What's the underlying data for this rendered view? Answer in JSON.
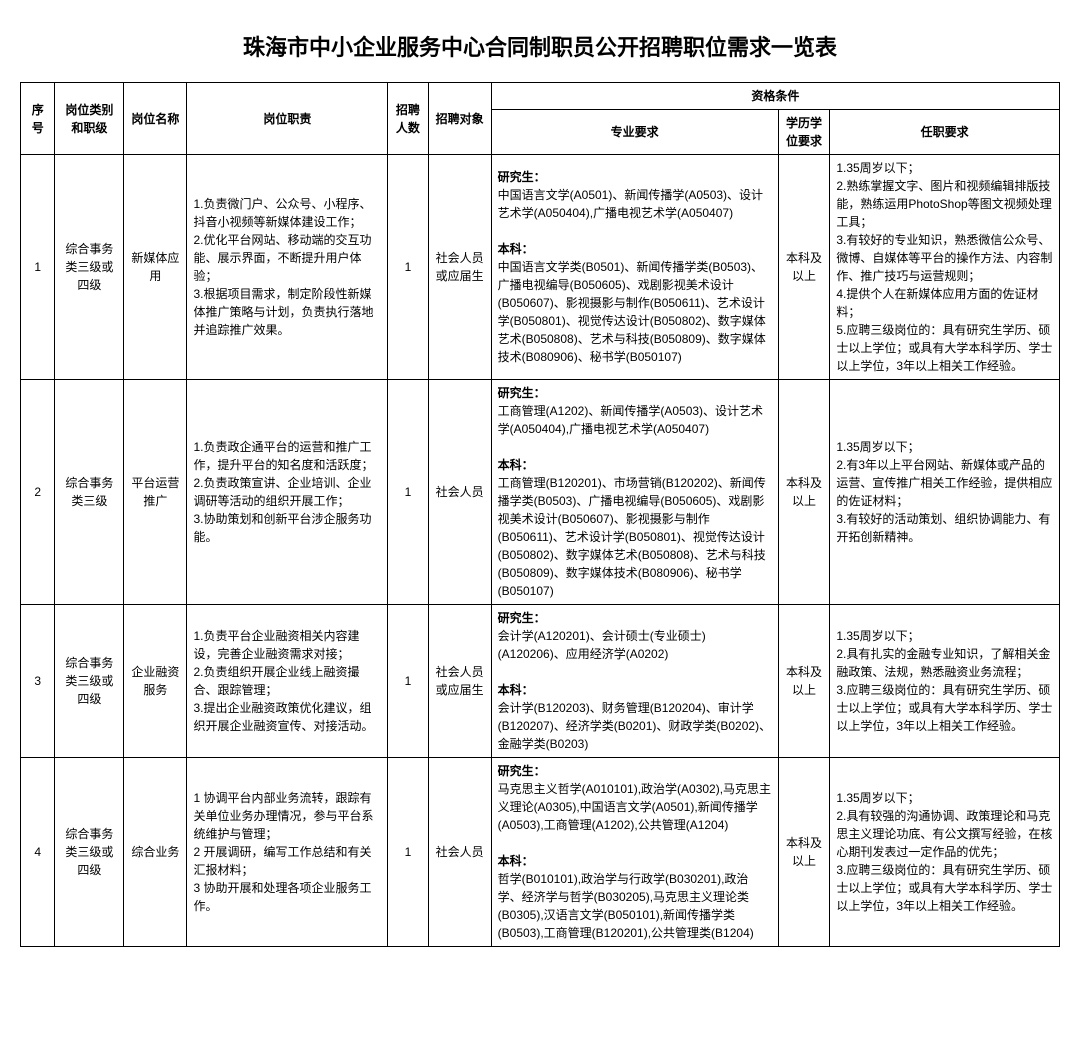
{
  "title": "珠海市中小企业服务中心合同制职员公开招聘职位需求一览表",
  "headers": {
    "idx": "序号",
    "category": "岗位类别和职级",
    "name": "岗位名称",
    "duty": "岗位职责",
    "num": "招聘人数",
    "obj": "招聘对象",
    "qual": "资格条件",
    "major": "专业要求",
    "edu": "学历学位要求",
    "req": "任职要求"
  },
  "labels": {
    "grad": "研究生：",
    "undergrad": "本科："
  },
  "rows": [
    {
      "idx": "1",
      "category": "综合事务类三级或四级",
      "name": "新媒体应用",
      "duty": "1.负责微门户、公众号、小程序、抖音小视频等新媒体建设工作；\n2.优化平台网站、移动端的交互功能、展示界面，不断提升用户体验；\n3.根据项目需求，制定阶段性新媒体推广策略与计划，负责执行落地并追踪推广效果。",
      "num": "1",
      "obj": "社会人员或应届生",
      "major_grad": "中国语言文学(A0501)、新闻传播学(A0503)、设计艺术学(A050404),广播电视艺术学(A050407)",
      "major_under": "中国语言文学类(B0501)、新闻传播学类(B0503)、广播电视编导(B050605)、戏剧影视美术设计(B050607)、影视摄影与制作(B050611)、艺术设计学(B050801)、视觉传达设计(B050802)、数字媒体艺术(B050808)、艺术与科技(B050809)、数字媒体技术(B080906)、秘书学(B050107)",
      "edu": "本科及以上",
      "req": "1.35周岁以下；\n2.熟练掌握文字、图片和视频编辑排版技能，熟练运用PhotoShop等图文视频处理工具；\n3.有较好的专业知识，熟悉微信公众号、微博、自媒体等平台的操作方法、内容制作、推广技巧与运营规则；\n4.提供个人在新媒体应用方面的佐证材料；\n5.应聘三级岗位的：具有研究生学历、硕士以上学位；或具有大学本科学历、学士以上学位，3年以上相关工作经验。"
    },
    {
      "idx": "2",
      "category": "综合事务类三级",
      "name": "平台运营推广",
      "duty": "1.负责政企通平台的运营和推广工作，提升平台的知名度和活跃度；\n2.负责政策宣讲、企业培训、企业调研等活动的组织开展工作；\n3.协助策划和创新平台涉企服务功能。",
      "num": "1",
      "obj": "社会人员",
      "major_grad": "工商管理(A1202)、新闻传播学(A0503)、设计艺术学(A050404),广播电视艺术学(A050407)",
      "major_under": "工商管理(B120201)、市场营销(B120202)、新闻传播学类(B0503)、广播电视编导(B050605)、戏剧影视美术设计(B050607)、影视摄影与制作(B050611)、艺术设计学(B050801)、视觉传达设计(B050802)、数字媒体艺术(B050808)、艺术与科技(B050809)、数字媒体技术(B080906)、秘书学(B050107)",
      "edu": "本科及以上",
      "req": "1.35周岁以下；\n2.有3年以上平台网站、新媒体或产品的运营、宣传推广相关工作经验，提供相应的佐证材料；\n3.有较好的活动策划、组织协调能力、有开拓创新精神。"
    },
    {
      "idx": "3",
      "category": "综合事务类三级或四级",
      "name": "企业融资服务",
      "duty": "1.负责平台企业融资相关内容建设，完善企业融资需求对接；\n2.负责组织开展企业线上融资撮合、跟踪管理；\n3.提出企业融资政策优化建议，组织开展企业融资宣传、对接活动。",
      "num": "1",
      "obj": "社会人员或应届生",
      "major_grad": "会计学(A120201)、会计硕士(专业硕士)(A120206)、应用经济学(A0202)",
      "major_under": "会计学(B120203)、财务管理(B120204)、审计学(B120207)、经济学类(B0201)、财政学类(B0202)、金融学类(B0203)",
      "edu": "本科及以上",
      "req": "1.35周岁以下；\n2.具有扎实的金融专业知识，了解相关金融政策、法规，熟悉融资业务流程；\n3.应聘三级岗位的：具有研究生学历、硕士以上学位；或具有大学本科学历、学士以上学位，3年以上相关工作经验。"
    },
    {
      "idx": "4",
      "category": "综合事务类三级或四级",
      "name": "综合业务",
      "duty": "1 协调平台内部业务流转，跟踪有关单位业务办理情况，参与平台系统维护与管理；\n2 开展调研，编写工作总结和有关汇报材料；\n3 协助开展和处理各项企业服务工作。",
      "num": "1",
      "obj": "社会人员",
      "major_grad": "马克思主义哲学(A010101),政治学(A0302),马克思主义理论(A0305),中国语言文学(A0501),新闻传播学(A0503),工商管理(A1202),公共管理(A1204)",
      "major_under": "哲学(B010101),政治学与行政学(B030201),政治学、经济学与哲学(B030205),马克思主义理论类(B0305),汉语言文学(B050101),新闻传播学类(B0503),工商管理(B120201),公共管理类(B1204)",
      "edu": "本科及以上",
      "req": "1.35周岁以下；\n2.具有较强的沟通协调、政策理论和马克思主义理论功底、有公文撰写经验，在核心期刊发表过一定作品的优先；\n3.应聘三级岗位的：具有研究生学历、硕士以上学位；或具有大学本科学历、学士以上学位，3年以上相关工作经验。"
    }
  ]
}
